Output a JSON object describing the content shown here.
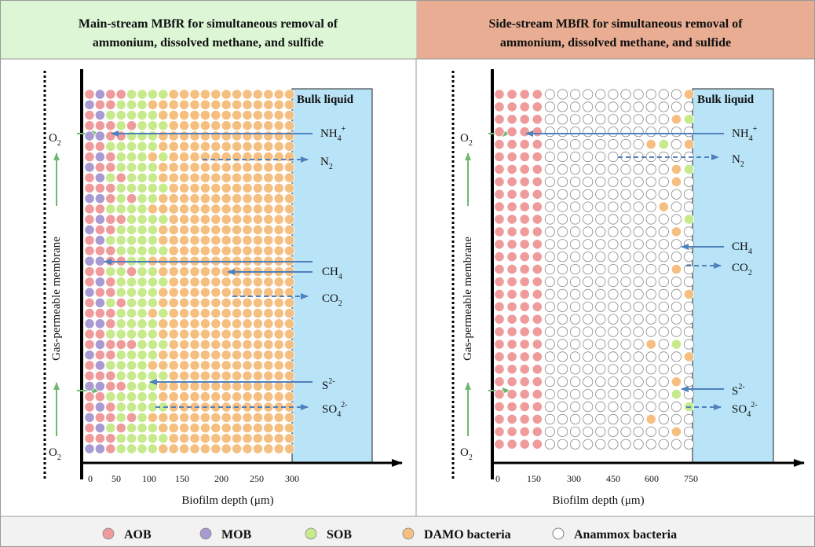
{
  "colors": {
    "aob": "#f09b9b",
    "mob": "#a89bd2",
    "sob": "#c6ea8c",
    "damo": "#f6bf82",
    "anammox": "#ffffff",
    "bulk": "#b9e3f7",
    "arrow_blue": "#4f81bd",
    "arrow_green": "#70b870",
    "header_left": "#dcf6d6",
    "header_right": "#e8ad92",
    "legend_bg": "#f2f2f2"
  },
  "panels": [
    {
      "id": "main",
      "title_line1": "Main-stream MBfR for simultaneous removal of",
      "title_line2": "ammonium, dissolved methane, and sulfide",
      "bulk_label": "Bulk liquid",
      "membrane_label": "Gas-permeable membrane",
      "o2_label": "O",
      "o2_sub": "2",
      "x_axis_label": "Biofilm depth (μm)",
      "ticks": [
        "0",
        "50",
        "100",
        "150",
        "200",
        "250",
        "300"
      ],
      "species": {
        "nh4": {
          "base": "NH",
          "sub": "4",
          "sup": "+"
        },
        "n2": {
          "base": "N",
          "sub": "2",
          "sup": ""
        },
        "ch4": {
          "base": "CH",
          "sub": "4",
          "sup": ""
        },
        "co2": {
          "base": "CO",
          "sub": "2",
          "sup": ""
        },
        "s2": {
          "base": "S",
          "sub": "",
          "sup": "2-"
        },
        "so4": {
          "base": "SO",
          "sub": "4",
          "sup": "2-"
        }
      }
    },
    {
      "id": "side",
      "title_line1": "Side-stream MBfR for simultaneous removal of",
      "title_line2": "ammonium, dissolved methane, and sulfide",
      "bulk_label": "Bulk liquid",
      "membrane_label": "Gas-permeable membrane",
      "o2_label": "O",
      "o2_sub": "2",
      "x_axis_label": "Biofilm depth (μm)",
      "ticks": [
        "0",
        "150",
        "300",
        "450",
        "600",
        "750"
      ],
      "species": {
        "nh4": {
          "base": "NH",
          "sub": "4",
          "sup": "+"
        },
        "n2": {
          "base": "N",
          "sub": "2",
          "sup": ""
        },
        "ch4": {
          "base": "CH",
          "sub": "4",
          "sup": ""
        },
        "co2": {
          "base": "CO",
          "sub": "2",
          "sup": ""
        },
        "s2": {
          "base": "S",
          "sub": "",
          "sup": "2-"
        },
        "so4": {
          "base": "SO",
          "sub": "4",
          "sup": "2-"
        }
      }
    }
  ],
  "legend": [
    {
      "key": "aob",
      "label": "AOB"
    },
    {
      "key": "mob",
      "label": "MOB"
    },
    {
      "key": "sob",
      "label": "SOB"
    },
    {
      "key": "damo",
      "label": "DAMO bacteria"
    },
    {
      "key": "anammox",
      "label": "Anammox bacteria"
    }
  ]
}
